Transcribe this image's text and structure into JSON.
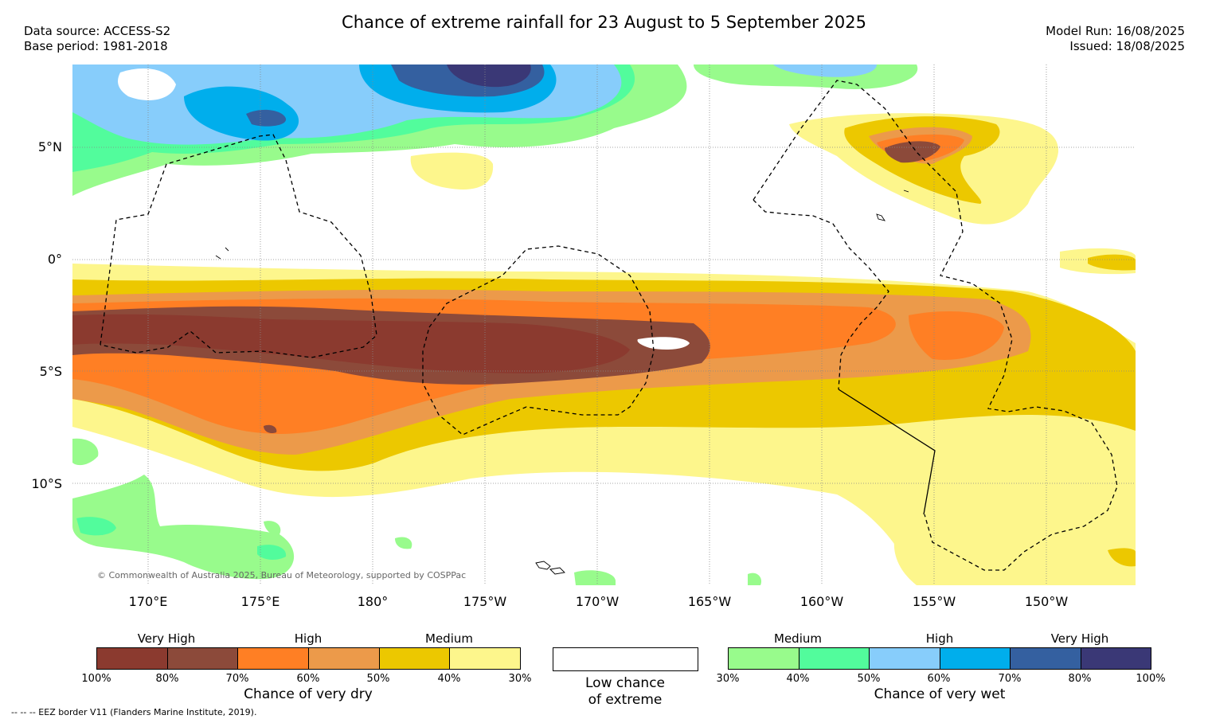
{
  "header": {
    "title": "Chance of extreme rainfall for 23 August to 5 September 2025",
    "data_source": "Data source: ACCESS-S2",
    "base_period": "Base period: 1981-2018",
    "model_run": "Model Run: 16/08/2025",
    "issued": "Issued: 18/08/2025"
  },
  "map": {
    "lat_labels": [
      "5°N",
      "0°",
      "5°S",
      "10°S"
    ],
    "lon_labels": [
      "170°E",
      "175°E",
      "180°",
      "175°W",
      "170°W",
      "165°W",
      "160°W",
      "155°W",
      "150°W"
    ],
    "copyright": "© Commonwealth of Australia 2025, Bureau of Meteorology, supported by COSPPac"
  },
  "legend": {
    "dry": {
      "levels": [
        "Very High",
        "High",
        "Medium"
      ],
      "colors": [
        "#8b3a2f",
        "#8c4a3a",
        "#ff7f24",
        "#ec9a4a",
        "#ecc800",
        "#fdf68c"
      ],
      "ticks": [
        "100%",
        "80%",
        "70%",
        "60%",
        "50%",
        "40%",
        "30%"
      ],
      "title": "Chance of very dry"
    },
    "low": {
      "color": "#ffffff",
      "title_line1": "Low chance",
      "title_line2": "of extreme"
    },
    "wet": {
      "levels": [
        "Medium",
        "High",
        "Very High"
      ],
      "colors": [
        "#98fb8c",
        "#52fc9c",
        "#87cdfb",
        "#00aeec",
        "#3460a0",
        "#3a3876"
      ],
      "ticks": [
        "30%",
        "40%",
        "50%",
        "60%",
        "70%",
        "80%",
        "100%"
      ],
      "title": "Chance of very wet"
    }
  },
  "footer": {
    "eez_note": "--  --  -- EEZ border V11 (Flanders Marine Institute, 2019)."
  }
}
